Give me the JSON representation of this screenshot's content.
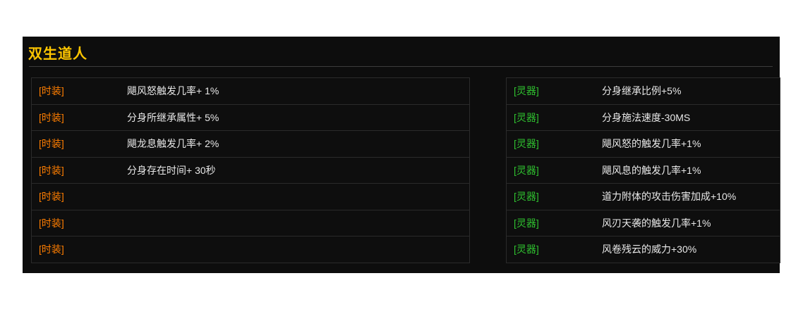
{
  "header": {
    "title": "双生道人"
  },
  "colors": {
    "panel_bg": "#0d0d0d",
    "title": "#ffc600",
    "fashion_label": "#ff7e00",
    "lingqi_label": "#2fc12f",
    "row_text": "#e8e8e8",
    "border": "#2b2b2b"
  },
  "left_table": {
    "rows": [
      {
        "label": "[时装]",
        "desc": "飓风怒触发几率+ 1%"
      },
      {
        "label": "[时装]",
        "desc": "分身所继承属性+ 5%"
      },
      {
        "label": "[时装]",
        "desc": "飓龙息触发几率+ 2%"
      },
      {
        "label": "[时装]",
        "desc": "分身存在时间+ 30秒"
      },
      {
        "label": "[时装]",
        "desc": ""
      },
      {
        "label": "[时装]",
        "desc": ""
      },
      {
        "label": "[时装]",
        "desc": ""
      }
    ]
  },
  "right_table": {
    "rows": [
      {
        "label": "[灵器]",
        "desc": "分身继承比例+5%"
      },
      {
        "label": "[灵器]",
        "desc": "分身施法速度-30MS"
      },
      {
        "label": "[灵器]",
        "desc": "飓风怒的触发几率+1%"
      },
      {
        "label": "[灵器]",
        "desc": "飓风息的触发几率+1%"
      },
      {
        "label": "[灵器]",
        "desc": "道力附体的攻击伤害加成+10%"
      },
      {
        "label": "[灵器]",
        "desc": "风刃天袭的触发几率+1%"
      },
      {
        "label": "[灵器]",
        "desc": "风卷残云的威力+30%"
      }
    ]
  }
}
